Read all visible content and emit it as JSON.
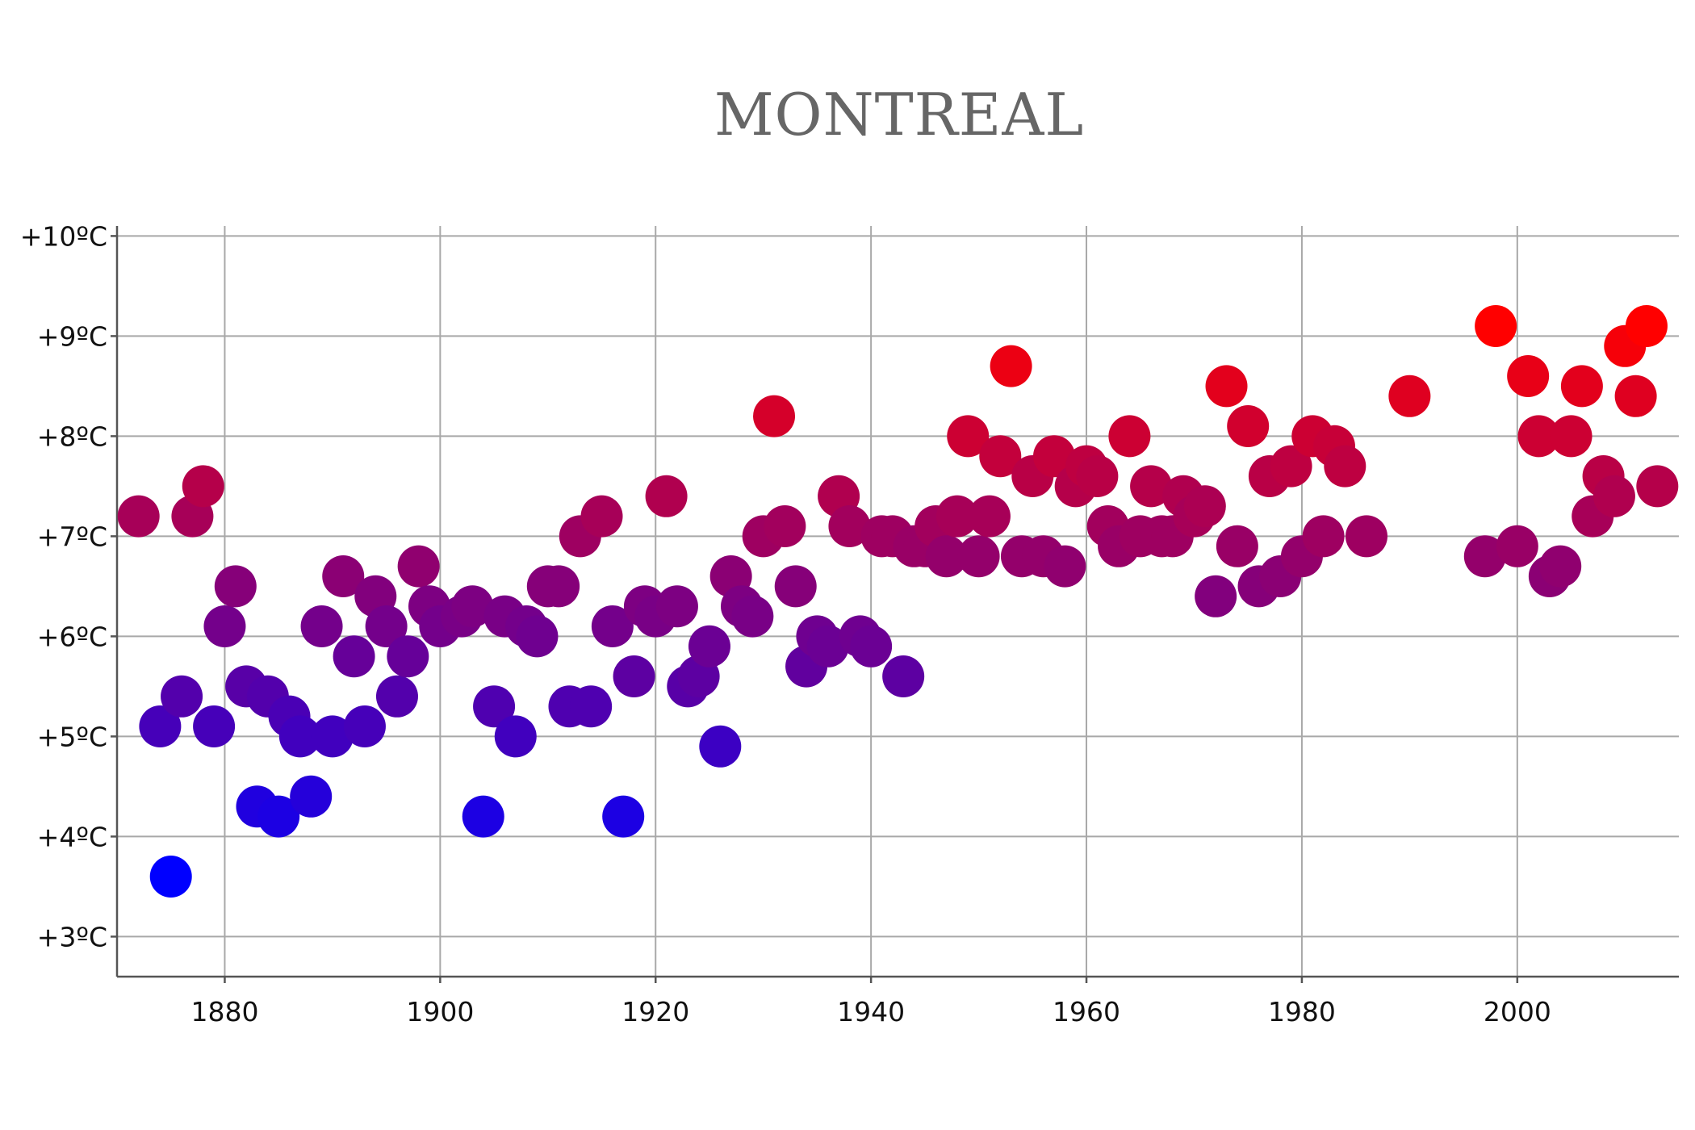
{
  "chart_data": {
    "type": "scatter",
    "title": "MONTREAL",
    "xlabel": "",
    "ylabel": "",
    "xlim": [
      1870,
      2015
    ],
    "ylim": [
      2.6,
      10.1
    ],
    "grid": true,
    "x_ticks": [
      1880,
      1900,
      1920,
      1940,
      1960,
      1980,
      2000
    ],
    "x_tick_labels": [
      "1880",
      "1900",
      "1920",
      "1940",
      "1960",
      "1980",
      "2000"
    ],
    "y_ticks": [
      3,
      4,
      5,
      6,
      7,
      8,
      9,
      10
    ],
    "y_tick_labels": [
      "+3ºC",
      "+4ºC",
      "+5ºC",
      "+6ºC",
      "+7ºC",
      "+8ºC",
      "+9ºC",
      "+10ºC"
    ],
    "color_scale": {
      "low": "#0000ff",
      "high": "#ff0000",
      "min": 3.6,
      "max": 9.1
    },
    "points": [
      [
        1872,
        7.2
      ],
      [
        1874,
        5.1
      ],
      [
        1875,
        3.6
      ],
      [
        1876,
        5.4
      ],
      [
        1877,
        7.2
      ],
      [
        1878,
        7.5
      ],
      [
        1879,
        5.1
      ],
      [
        1880,
        6.1
      ],
      [
        1881,
        6.5
      ],
      [
        1882,
        5.5
      ],
      [
        1883,
        4.3
      ],
      [
        1884,
        5.4
      ],
      [
        1885,
        4.2
      ],
      [
        1886,
        5.2
      ],
      [
        1887,
        5.0
      ],
      [
        1888,
        4.4
      ],
      [
        1889,
        6.1
      ],
      [
        1890,
        5.0
      ],
      [
        1891,
        6.6
      ],
      [
        1892,
        5.8
      ],
      [
        1893,
        5.1
      ],
      [
        1894,
        6.4
      ],
      [
        1895,
        6.1
      ],
      [
        1896,
        5.4
      ],
      [
        1897,
        5.8
      ],
      [
        1898,
        6.7
      ],
      [
        1899,
        6.3
      ],
      [
        1900,
        6.1
      ],
      [
        1902,
        6.2
      ],
      [
        1903,
        6.3
      ],
      [
        1904,
        4.2
      ],
      [
        1905,
        5.3
      ],
      [
        1906,
        6.2
      ],
      [
        1907,
        5.0
      ],
      [
        1908,
        6.1
      ],
      [
        1909,
        6.0
      ],
      [
        1910,
        6.5
      ],
      [
        1911,
        6.5
      ],
      [
        1912,
        5.3
      ],
      [
        1913,
        7.0
      ],
      [
        1914,
        5.3
      ],
      [
        1915,
        7.2
      ],
      [
        1916,
        6.1
      ],
      [
        1917,
        4.2
      ],
      [
        1918,
        5.6
      ],
      [
        1919,
        6.3
      ],
      [
        1920,
        6.2
      ],
      [
        1921,
        7.4
      ],
      [
        1922,
        6.3
      ],
      [
        1923,
        5.5
      ],
      [
        1924,
        5.6
      ],
      [
        1925,
        5.9
      ],
      [
        1926,
        4.9
      ],
      [
        1927,
        6.6
      ],
      [
        1928,
        6.3
      ],
      [
        1929,
        6.2
      ],
      [
        1930,
        7.0
      ],
      [
        1931,
        8.2
      ],
      [
        1932,
        7.1
      ],
      [
        1933,
        6.5
      ],
      [
        1934,
        5.7
      ],
      [
        1935,
        6.0
      ],
      [
        1936,
        5.9
      ],
      [
        1937,
        7.4
      ],
      [
        1938,
        7.1
      ],
      [
        1939,
        6.0
      ],
      [
        1940,
        5.9
      ],
      [
        1941,
        7.0
      ],
      [
        1942,
        7.0
      ],
      [
        1943,
        5.6
      ],
      [
        1944,
        6.9
      ],
      [
        1945,
        6.9
      ],
      [
        1946,
        7.1
      ],
      [
        1947,
        6.8
      ],
      [
        1948,
        7.2
      ],
      [
        1949,
        8.0
      ],
      [
        1950,
        6.8
      ],
      [
        1951,
        7.2
      ],
      [
        1952,
        7.8
      ],
      [
        1953,
        8.7
      ],
      [
        1954,
        6.8
      ],
      [
        1955,
        7.6
      ],
      [
        1956,
        6.8
      ],
      [
        1957,
        7.8
      ],
      [
        1958,
        6.7
      ],
      [
        1959,
        7.5
      ],
      [
        1960,
        7.7
      ],
      [
        1961,
        7.6
      ],
      [
        1962,
        7.1
      ],
      [
        1963,
        6.9
      ],
      [
        1964,
        8.0
      ],
      [
        1965,
        7.0
      ],
      [
        1966,
        7.5
      ],
      [
        1967,
        7.0
      ],
      [
        1968,
        7.0
      ],
      [
        1969,
        7.4
      ],
      [
        1970,
        7.2
      ],
      [
        1971,
        7.3
      ],
      [
        1972,
        6.4
      ],
      [
        1973,
        8.5
      ],
      [
        1974,
        6.9
      ],
      [
        1975,
        8.1
      ],
      [
        1976,
        6.5
      ],
      [
        1977,
        7.6
      ],
      [
        1978,
        6.6
      ],
      [
        1979,
        7.7
      ],
      [
        1980,
        6.8
      ],
      [
        1981,
        8.0
      ],
      [
        1982,
        7.0
      ],
      [
        1983,
        7.9
      ],
      [
        1984,
        7.7
      ],
      [
        1986,
        7.0
      ],
      [
        1990,
        8.4
      ],
      [
        1997,
        6.8
      ],
      [
        1998,
        9.1
      ],
      [
        2000,
        6.9
      ],
      [
        2001,
        8.6
      ],
      [
        2002,
        8.0
      ],
      [
        2003,
        6.6
      ],
      [
        2004,
        6.7
      ],
      [
        2005,
        8.0
      ],
      [
        2006,
        8.5
      ],
      [
        2007,
        7.2
      ],
      [
        2008,
        7.6
      ],
      [
        2009,
        7.4
      ],
      [
        2010,
        8.9
      ],
      [
        2011,
        8.4
      ],
      [
        2012,
        9.1
      ],
      [
        2013,
        7.5
      ]
    ]
  }
}
